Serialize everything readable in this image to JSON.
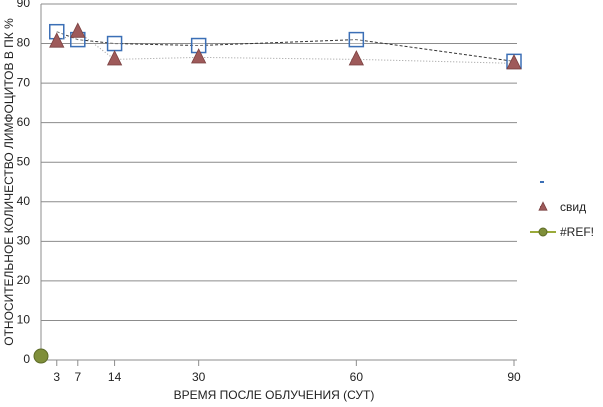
{
  "chart_data": {
    "type": "line",
    "x_label": "ВРЕМЯ ПОСЛЕ ОБЛУЧЕНИЯ (СУТ)",
    "y_label": "ОТНОСИТЕЛЬНОЕ КОЛИЧЕСТВО ЛИМФОЦИТОВ В ПК %",
    "xlim": [
      0,
      90
    ],
    "xticks": [
      3,
      7,
      14,
      30,
      60,
      90
    ],
    "ylim": [
      0,
      90
    ],
    "yticks": [
      0,
      10,
      20,
      30,
      40,
      50,
      60,
      70,
      80,
      90
    ],
    "grid": true,
    "legend": "right",
    "series": [
      {
        "color": "#3b6fb6",
        "marker": "square",
        "line": "dashed",
        "x": [
          3,
          7,
          14,
          30,
          60,
          90
        ],
        "values": [
          83,
          81,
          80,
          79.5,
          81,
          75.5
        ]
      },
      {
        "name": "свид",
        "color": "#9e5a5a",
        "marker": "triangle",
        "line": "dotted",
        "x": [
          3,
          7,
          14,
          30,
          60,
          90
        ],
        "values": [
          80.5,
          83,
          76,
          76.5,
          76,
          75
        ]
      },
      {
        "name": "#REF!",
        "color": "#7f8f3a",
        "marker": "circle",
        "line": "solid",
        "x": [
          0
        ],
        "values": [
          1
        ]
      }
    ]
  }
}
